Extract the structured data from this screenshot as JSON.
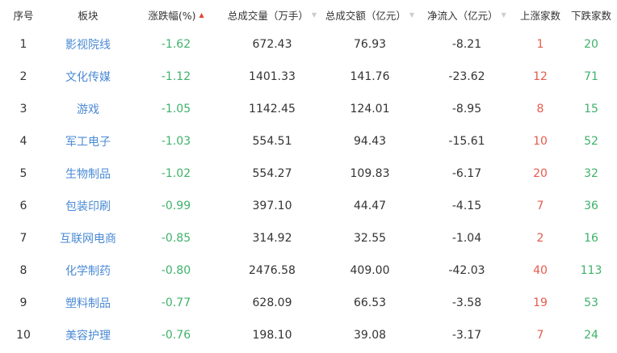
{
  "headers": {
    "index": "序号",
    "sector": "板块",
    "change_pct": "涨跌幅(%)",
    "volume": "总成交量（万手）",
    "amount": "总成交额（亿元）",
    "net_inflow": "净流入（亿元）",
    "up_count": "上涨家数",
    "down_count": "下跌家数"
  },
  "sort": {
    "active_column": "change_pct",
    "direction": "ascending",
    "active_icon": "▲",
    "inactive_icon": "▼"
  },
  "colors": {
    "link": "#4a8ad4",
    "down": "#3fb26a",
    "up": "#e65a4d",
    "sort_active": "#e0463c"
  },
  "rows": [
    {
      "index": "1",
      "sector": "影视院线",
      "change_pct": "-1.62",
      "volume": "672.43",
      "amount": "76.93",
      "net_inflow": "-8.21",
      "up_count": "1",
      "down_count": "20"
    },
    {
      "index": "2",
      "sector": "文化传媒",
      "change_pct": "-1.12",
      "volume": "1401.33",
      "amount": "141.76",
      "net_inflow": "-23.62",
      "up_count": "12",
      "down_count": "71"
    },
    {
      "index": "3",
      "sector": "游戏",
      "change_pct": "-1.05",
      "volume": "1142.45",
      "amount": "124.01",
      "net_inflow": "-8.95",
      "up_count": "8",
      "down_count": "15"
    },
    {
      "index": "4",
      "sector": "军工电子",
      "change_pct": "-1.03",
      "volume": "554.51",
      "amount": "94.43",
      "net_inflow": "-15.61",
      "up_count": "10",
      "down_count": "52"
    },
    {
      "index": "5",
      "sector": "生物制品",
      "change_pct": "-1.02",
      "volume": "554.27",
      "amount": "109.83",
      "net_inflow": "-6.17",
      "up_count": "20",
      "down_count": "32"
    },
    {
      "index": "6",
      "sector": "包装印刷",
      "change_pct": "-0.99",
      "volume": "397.10",
      "amount": "44.47",
      "net_inflow": "-4.15",
      "up_count": "7",
      "down_count": "36"
    },
    {
      "index": "7",
      "sector": "互联网电商",
      "change_pct": "-0.85",
      "volume": "314.92",
      "amount": "32.55",
      "net_inflow": "-1.04",
      "up_count": "2",
      "down_count": "16"
    },
    {
      "index": "8",
      "sector": "化学制药",
      "change_pct": "-0.80",
      "volume": "2476.58",
      "amount": "409.00",
      "net_inflow": "-42.03",
      "up_count": "40",
      "down_count": "113"
    },
    {
      "index": "9",
      "sector": "塑料制品",
      "change_pct": "-0.77",
      "volume": "628.09",
      "amount": "66.53",
      "net_inflow": "-3.58",
      "up_count": "19",
      "down_count": "53"
    },
    {
      "index": "10",
      "sector": "美容护理",
      "change_pct": "-0.76",
      "volume": "198.10",
      "amount": "39.08",
      "net_inflow": "-3.17",
      "up_count": "7",
      "down_count": "24"
    }
  ]
}
